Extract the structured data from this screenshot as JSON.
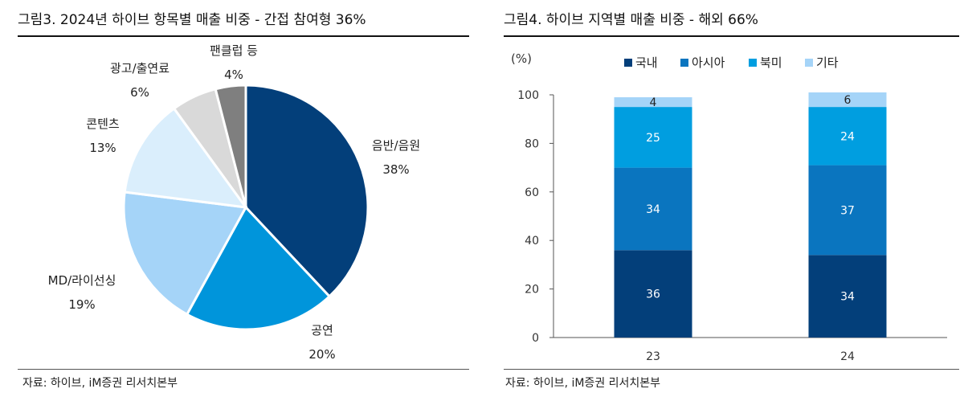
{
  "left": {
    "title": "그림3.   2024년 하이브 항목별 매출 비중  -  간접 참여형 36%",
    "source": "자료: 하이브, iM증권 리서치본부",
    "chart_data": {
      "type": "pie",
      "title": "2024년 하이브 항목별 매출 비중",
      "slices": [
        {
          "label": "음반/음원",
          "value": 38,
          "pct_label": "38%",
          "color": "#033f7a"
        },
        {
          "label": "공연",
          "value": 20,
          "pct_label": "20%",
          "color": "#0095db"
        },
        {
          "label": "MD/라이선싱",
          "value": 19,
          "pct_label": "19%",
          "color": "#a5d4f8"
        },
        {
          "label": "콘텐츠",
          "value": 13,
          "pct_label": "13%",
          "color": "#daeefc"
        },
        {
          "label": "광고/출연료",
          "value": 6,
          "pct_label": "6%",
          "color": "#d9d9d9"
        },
        {
          "label": "팬클럽 등",
          "value": 4,
          "pct_label": "4%",
          "color": "#7f7f7f"
        }
      ]
    }
  },
  "right": {
    "title": "그림4.   하이브 지역별 매출 비중  -  해외 66%",
    "source": "자료: 하이브, iM증권 리서치본부",
    "chart_data": {
      "type": "bar",
      "stacked": true,
      "title": "하이브 지역별 매출 비중",
      "ylabel": "(%)",
      "ylim": [
        0,
        100
      ],
      "yticks": [
        0,
        20,
        40,
        60,
        80,
        100
      ],
      "categories": [
        "23",
        "24"
      ],
      "series": [
        {
          "name": "국내",
          "values": [
            36,
            34
          ],
          "color": "#033f7a"
        },
        {
          "name": "아시아",
          "values": [
            34,
            37
          ],
          "color": "#0a75bf"
        },
        {
          "name": "북미",
          "values": [
            25,
            24
          ],
          "color": "#009ee0"
        },
        {
          "name": "기타",
          "values": [
            4,
            6
          ],
          "color": "#a5d4f8"
        }
      ],
      "legend": "top"
    }
  }
}
